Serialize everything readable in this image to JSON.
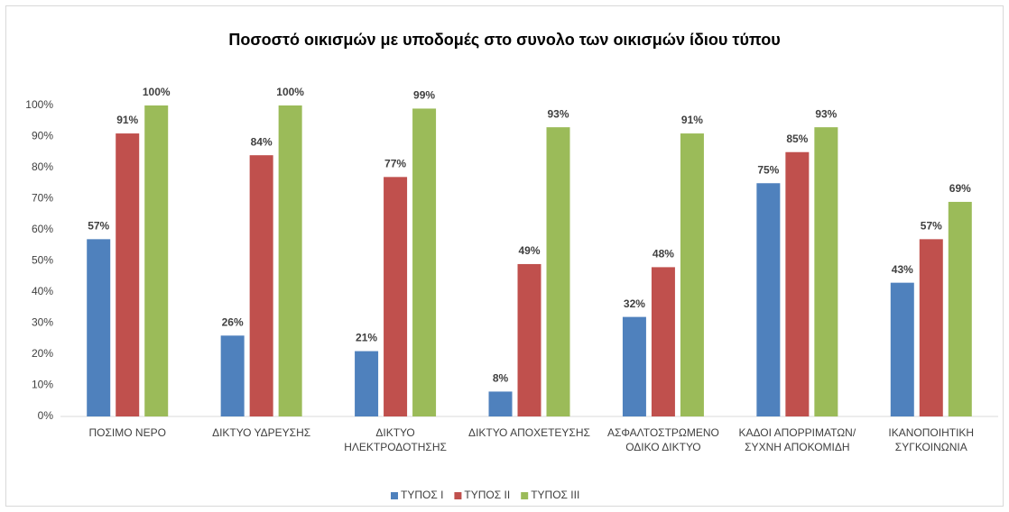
{
  "chart_data": {
    "type": "bar",
    "title": "Ποσοστό οικισμών με υποδομές στο συνολο των οικισμών ίδιου τύπου",
    "categories": [
      "ΠΟΣΙΜΟ ΝΕΡΟ",
      "ΔΙΚΤΥΟ ΥΔΡΕΥΣΗΣ",
      "ΔΙΚΤΥΟ ΗΛΕΚΤΡΟΔΟΤΗΣΗΣ",
      "ΔΙΚΤΥΟ ΑΠΟΧΕΤΕΥΣΗΣ",
      "ΑΣΦΑΛΤΟΣΤΡΩΜΕΝΟ ΟΔΙΚΟ ΔΙΚΤΥΟ",
      "ΚΑΔΟΙ ΑΠΟΡΡΙΜΑΤΩΝ/ΣΥΧΝΗ ΑΠΟΚΟΜΙΔΗ",
      "ΙΚΑΝΟΠΟΙΗΤΙΚΗ ΣΥΓΚΟΙΝΩΝΙΑ"
    ],
    "series": [
      {
        "name": "ΤΥΠΟΣ Ι",
        "color": "#4f81bd",
        "values": [
          57,
          26,
          21,
          8,
          32,
          75,
          43
        ],
        "value_labels": [
          "57%",
          "26%",
          "21%",
          "8%",
          "32%",
          "75%",
          "43%"
        ]
      },
      {
        "name": "ΤΥΠΟΣ ΙΙ",
        "color": "#c0504d",
        "values": [
          91,
          84,
          77,
          49,
          48,
          85,
          57
        ],
        "value_labels": [
          "91%",
          "84%",
          "77%",
          "49%",
          "48%",
          "85%",
          "57%"
        ]
      },
      {
        "name": "ΤΥΠΟΣ ΙΙΙ",
        "color": "#9bbb59",
        "values": [
          100,
          100,
          99,
          93,
          91,
          93,
          69
        ],
        "value_labels": [
          "100%",
          "100%",
          "99%",
          "93%",
          "91%",
          "93%",
          "69%"
        ]
      }
    ],
    "ylim": [
      0,
      100
    ],
    "yticks": [
      {
        "value": 0,
        "label": "0%"
      },
      {
        "value": 10,
        "label": "10%"
      },
      {
        "value": 20,
        "label": "20%"
      },
      {
        "value": 30,
        "label": "30%"
      },
      {
        "value": 40,
        "label": "40%"
      },
      {
        "value": 50,
        "label": "50%"
      },
      {
        "value": 60,
        "label": "60%"
      },
      {
        "value": 70,
        "label": "70%"
      },
      {
        "value": 80,
        "label": "80%"
      },
      {
        "value": 90,
        "label": "90%"
      },
      {
        "value": 100,
        "label": "100%"
      }
    ],
    "grid": false,
    "legend": "bottom"
  }
}
